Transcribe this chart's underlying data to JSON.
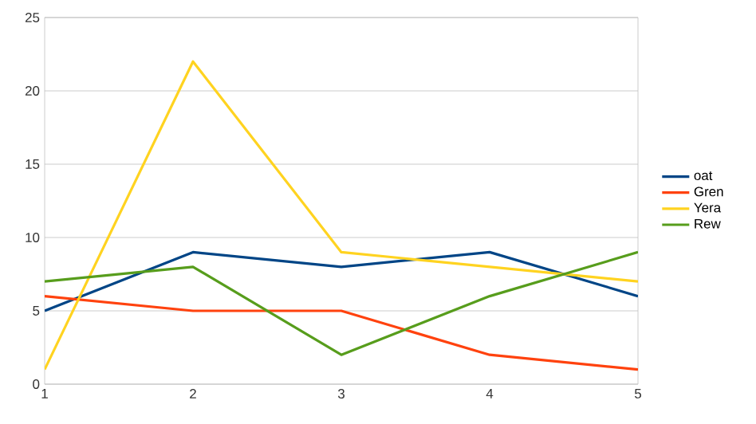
{
  "chart_data": {
    "type": "line",
    "x": [
      1,
      2,
      3,
      4,
      5
    ],
    "xlim": [
      1,
      5
    ],
    "xticks": [
      1,
      2,
      3,
      4,
      5
    ],
    "ylim": [
      0,
      25
    ],
    "yticks": [
      0,
      5,
      10,
      15,
      20,
      25
    ],
    "grid": "y",
    "legend": "right",
    "marker": "none",
    "line_style": "solid",
    "series": [
      {
        "name": "oat",
        "color": "#004586",
        "values": [
          5,
          9,
          8,
          9,
          6
        ]
      },
      {
        "name": "Gren",
        "color": "#ff420e",
        "values": [
          6,
          5,
          5,
          2,
          1
        ]
      },
      {
        "name": "Yera",
        "color": "#ffd320",
        "values": [
          1,
          22,
          9,
          8,
          7
        ]
      },
      {
        "name": "Rew",
        "color": "#579d1c",
        "values": [
          7,
          8,
          2,
          6,
          9
        ]
      }
    ]
  }
}
